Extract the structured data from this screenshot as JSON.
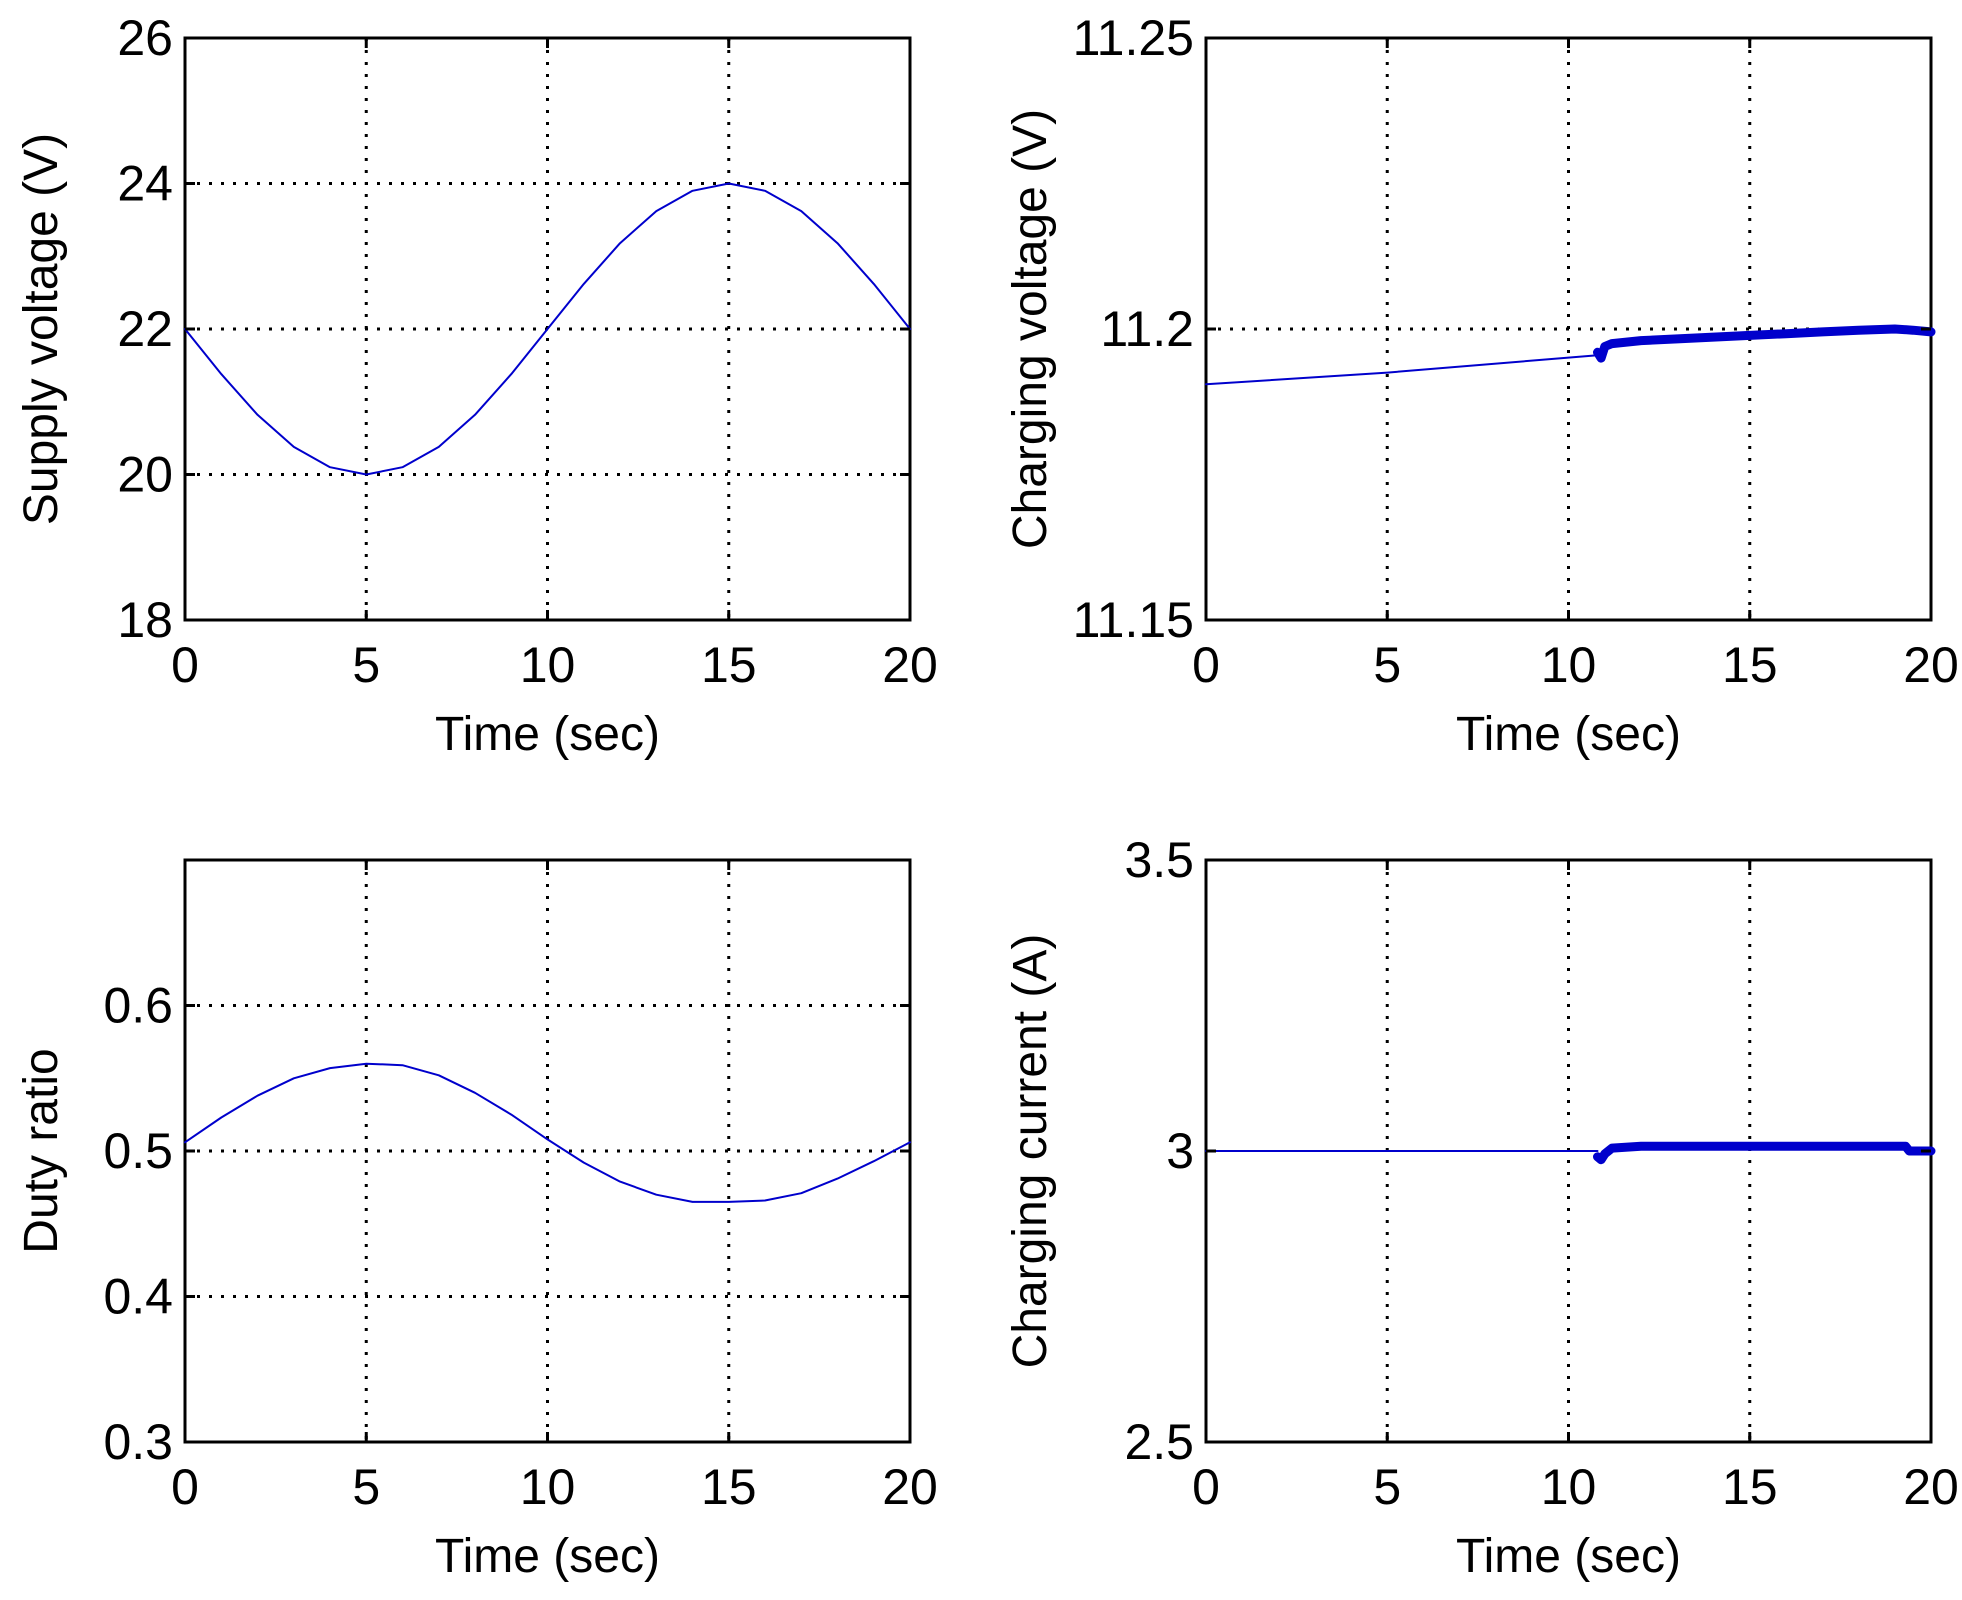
{
  "figure": {
    "background": "#ffffff",
    "series_color": "#0000cc",
    "axes_color": "#000000"
  },
  "chart_data": [
    {
      "type": "line",
      "position": "top-left",
      "title": "",
      "xlabel": "Time (sec)",
      "ylabel": "Supply voltage (V)",
      "xlim": [
        0,
        20
      ],
      "ylim": [
        18,
        26
      ],
      "xticks": [
        0,
        5,
        10,
        15,
        20
      ],
      "xtick_labels": [
        "0",
        "5",
        "10",
        "15",
        "20"
      ],
      "yticks": [
        18,
        20,
        22,
        24,
        26
      ],
      "ytick_labels": [
        "18",
        "20",
        "22",
        "24",
        "26"
      ],
      "grid": true,
      "grid_x": [
        5,
        10,
        15
      ],
      "grid_y": [
        20,
        22,
        24
      ],
      "series": [
        {
          "x": [
            0,
            1,
            2,
            3,
            4,
            5,
            6,
            7,
            8,
            9,
            10,
            11,
            12,
            13,
            14,
            15,
            16,
            17,
            18,
            19,
            20
          ],
          "y": [
            22.0,
            21.38,
            20.82,
            20.38,
            20.1,
            20.0,
            20.1,
            20.38,
            20.82,
            21.38,
            22.0,
            22.62,
            23.18,
            23.62,
            23.9,
            24.0,
            23.9,
            23.62,
            23.18,
            22.62,
            22.0
          ],
          "line_width": 2
        }
      ]
    },
    {
      "type": "line",
      "position": "top-right",
      "title": "",
      "xlabel": "Time (sec)",
      "ylabel": "Charging voltage (V)",
      "xlim": [
        0,
        20
      ],
      "ylim": [
        11.15,
        11.25
      ],
      "xticks": [
        0,
        5,
        10,
        15,
        20
      ],
      "xtick_labels": [
        "0",
        "5",
        "10",
        "15",
        "20"
      ],
      "yticks": [
        11.15,
        11.2,
        11.25
      ],
      "ytick_labels": [
        "11.15",
        "11.2",
        "11.25"
      ],
      "grid": true,
      "grid_x": [
        5,
        10,
        15
      ],
      "grid_y": [
        11.2
      ],
      "series": [
        {
          "x": [
            0,
            5,
            10.8
          ],
          "y": [
            11.1905,
            11.1925,
            11.1955
          ],
          "line_width": 2
        },
        {
          "x": [
            10.8,
            10.9,
            11.0,
            11.2,
            12,
            13,
            14,
            15,
            16,
            17,
            18,
            19,
            19.5,
            20
          ],
          "y": [
            11.196,
            11.195,
            11.197,
            11.1975,
            11.198,
            11.1983,
            11.1986,
            11.1989,
            11.1992,
            11.1995,
            11.1998,
            11.2,
            11.1998,
            11.1995
          ],
          "line_width": 9
        }
      ]
    },
    {
      "type": "line",
      "position": "bottom-left",
      "title": "",
      "xlabel": "Time (sec)",
      "ylabel": "Duty ratio",
      "xlim": [
        0,
        20
      ],
      "ylim": [
        0.3,
        0.7
      ],
      "xticks": [
        0,
        5,
        10,
        15,
        20
      ],
      "xtick_labels": [
        "0",
        "5",
        "10",
        "15",
        "20"
      ],
      "yticks": [
        0.3,
        0.4,
        0.5,
        0.6
      ],
      "ytick_labels": [
        "0.3",
        "0.4",
        "0.5",
        "0.6"
      ],
      "grid": true,
      "grid_x": [
        5,
        10,
        15
      ],
      "grid_y": [
        0.4,
        0.5,
        0.6
      ],
      "series": [
        {
          "x": [
            0,
            1,
            2,
            3,
            4,
            5,
            6,
            7,
            8,
            9,
            10,
            11,
            12,
            13,
            14,
            15,
            16,
            17,
            18,
            19,
            20
          ],
          "y": [
            0.506,
            0.523,
            0.538,
            0.55,
            0.557,
            0.56,
            0.559,
            0.552,
            0.54,
            0.525,
            0.508,
            0.492,
            0.479,
            0.47,
            0.465,
            0.465,
            0.466,
            0.471,
            0.481,
            0.493,
            0.506
          ],
          "line_width": 2
        }
      ]
    },
    {
      "type": "line",
      "position": "bottom-right",
      "title": "",
      "xlabel": "Time (sec)",
      "ylabel": "Charging current (A)",
      "xlim": [
        0,
        20
      ],
      "ylim": [
        2.5,
        3.5
      ],
      "xticks": [
        0,
        5,
        10,
        15,
        20
      ],
      "xtick_labels": [
        "0",
        "5",
        "10",
        "15",
        "20"
      ],
      "yticks": [
        2.5,
        3,
        3.5
      ],
      "ytick_labels": [
        "2.5",
        "3",
        "3.5"
      ],
      "grid": true,
      "grid_x": [
        5,
        10,
        15
      ],
      "grid_y": [],
      "series": [
        {
          "x": [
            0,
            10.8
          ],
          "y": [
            3.0,
            3.0
          ],
          "line_width": 2
        },
        {
          "x": [
            10.8,
            10.9,
            11.0,
            11.2,
            12,
            14,
            16,
            18,
            19.3,
            19.4,
            20
          ],
          "y": [
            2.99,
            2.985,
            2.995,
            3.005,
            3.008,
            3.008,
            3.008,
            3.008,
            3.008,
            3.0,
            3.0
          ],
          "line_width": 9
        }
      ]
    }
  ]
}
